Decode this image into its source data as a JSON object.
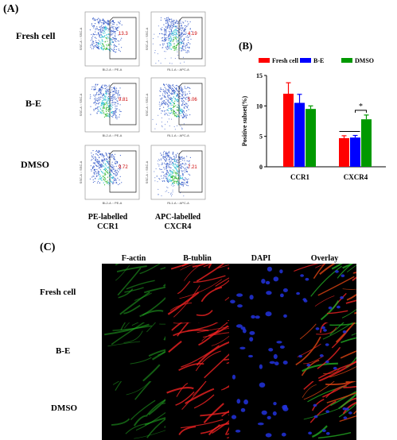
{
  "panel_a": {
    "letter": "(A)",
    "rows": [
      "Fresh cell",
      "B-E",
      "DMSO"
    ],
    "columns": [
      {
        "label_line1": "PE-labelled",
        "label_line2": "CCR1",
        "x_axis": "BL2-A :: PE-A",
        "y_axis": "SSC-A :: SSC-A",
        "gate_values": [
          "13.3",
          "9.81",
          "9.72"
        ]
      },
      {
        "label_line1": "APC-labelled",
        "label_line2": "CXCR4",
        "x_axis": "RL1-A :: APC-A",
        "y_axis": "SSC-A :: SSC-A",
        "gate_values": [
          "4.19",
          "5.06",
          "7.21"
        ]
      }
    ]
  },
  "panel_b": {
    "letter": "(B)",
    "significance_mark": "*"
  },
  "chart_data": {
    "type": "bar",
    "categories": [
      "CCR1",
      "CXCR4"
    ],
    "series": [
      {
        "name": "Fresh cell",
        "color": "#ff0000",
        "values": [
          12.0,
          4.7
        ],
        "errors": [
          1.8,
          0.4
        ]
      },
      {
        "name": "B-E",
        "color": "#0000ff",
        "values": [
          10.5,
          4.8
        ],
        "errors": [
          1.4,
          0.35
        ]
      },
      {
        "name": "DMSO",
        "color": "#009900",
        "values": [
          9.5,
          7.8
        ],
        "errors": [
          0.5,
          0.7
        ]
      }
    ],
    "ylabel": "Positive subset(%)",
    "ylim": [
      0,
      15
    ],
    "yticks": [
      "0",
      "5",
      "10",
      "15"
    ],
    "legend_position": "top",
    "grid": false
  },
  "panel_c": {
    "letter": "(C)",
    "channels": [
      "F-actin",
      "B-tublin",
      "DAPI",
      "Overlay"
    ],
    "rows": [
      "Fresh cell",
      "B-E",
      "DMSO"
    ],
    "channel_colors": [
      "#22aa22",
      "#ee2222",
      "#2233dd",
      "#cc4422"
    ]
  }
}
